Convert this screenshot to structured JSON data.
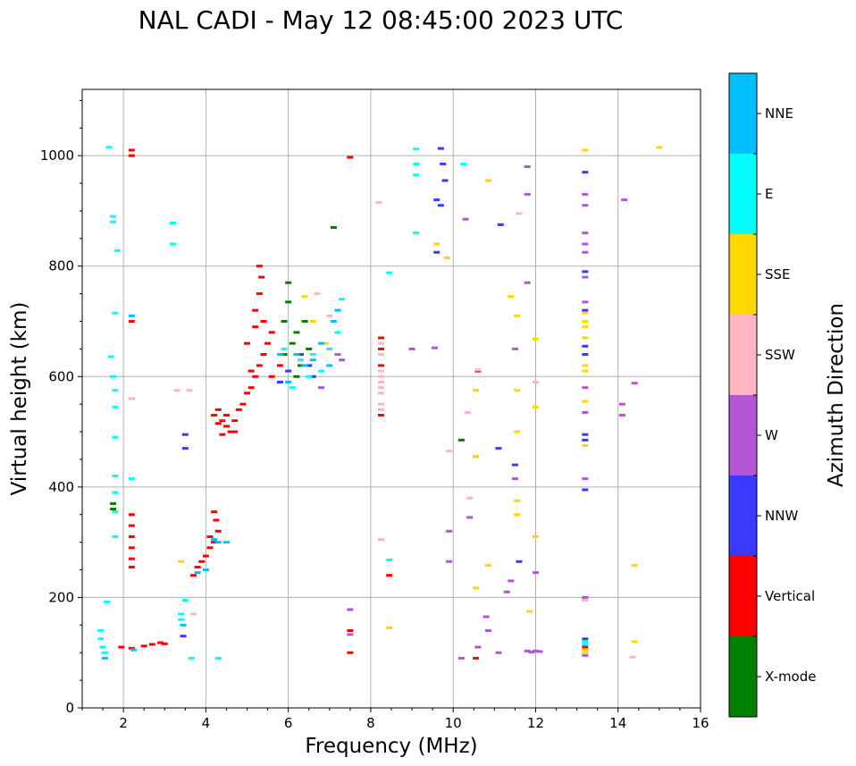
{
  "chart_data": {
    "type": "scatter",
    "title": "NAL CADI - May 12 08:45:00 2023 UTC",
    "xlabel": "Frequency (MHz)",
    "ylabel": "Virtual height (km)",
    "xlim": [
      1,
      16
    ],
    "ylim": [
      0,
      1120
    ],
    "xticks": [
      2,
      4,
      6,
      8,
      10,
      12,
      14,
      16
    ],
    "yticks": [
      0,
      200,
      400,
      600,
      800,
      1000
    ],
    "grid": true,
    "colorbar": {
      "label": "Azimuth Direction",
      "categories": [
        {
          "name": "X-mode",
          "color": "#008000"
        },
        {
          "name": "Vertical",
          "color": "#ff0000"
        },
        {
          "name": "NNW",
          "color": "#3a3aff"
        },
        {
          "name": "W",
          "color": "#b455d6"
        },
        {
          "name": "SSW",
          "color": "#ffb6c1"
        },
        {
          "name": "SSE",
          "color": "#ffd700"
        },
        {
          "name": "E",
          "color": "#00ffff"
        },
        {
          "name": "NNE",
          "color": "#00bfff"
        }
      ]
    },
    "series": [
      {
        "name": "Vertical",
        "points": [
          [
            2.2,
            1010
          ],
          [
            2.2,
            1000
          ],
          [
            2.2,
            350
          ],
          [
            2.2,
            330
          ],
          [
            2.2,
            310
          ],
          [
            2.2,
            290
          ],
          [
            2.2,
            270
          ],
          [
            2.2,
            255
          ],
          [
            2.2,
            700
          ],
          [
            2.2,
            560
          ],
          [
            1.95,
            110
          ],
          [
            2.2,
            108
          ],
          [
            2.5,
            112
          ],
          [
            2.7,
            115
          ],
          [
            2.9,
            118
          ],
          [
            3.0,
            116
          ],
          [
            3.7,
            240
          ],
          [
            3.8,
            255
          ],
          [
            3.9,
            265
          ],
          [
            4.0,
            275
          ],
          [
            4.1,
            290
          ],
          [
            4.2,
            300
          ],
          [
            4.3,
            320
          ],
          [
            4.25,
            340
          ],
          [
            4.2,
            355
          ],
          [
            4.1,
            310
          ],
          [
            4.2,
            530
          ],
          [
            4.3,
            540
          ],
          [
            4.4,
            520
          ],
          [
            4.5,
            510
          ],
          [
            4.6,
            500
          ],
          [
            4.7,
            520
          ],
          [
            4.8,
            540
          ],
          [
            4.9,
            550
          ],
          [
            5.0,
            570
          ],
          [
            5.1,
            580
          ],
          [
            5.2,
            600
          ],
          [
            5.3,
            620
          ],
          [
            5.4,
            640
          ],
          [
            5.5,
            660
          ],
          [
            5.6,
            680
          ],
          [
            5.0,
            660
          ],
          [
            5.2,
            720
          ],
          [
            5.3,
            750
          ],
          [
            5.35,
            780
          ],
          [
            5.3,
            800
          ],
          [
            5.2,
            690
          ],
          [
            5.6,
            600
          ],
          [
            5.8,
            620
          ],
          [
            4.4,
            495
          ],
          [
            4.5,
            530
          ],
          [
            4.3,
            515
          ],
          [
            4.7,
            500
          ],
          [
            5.1,
            610
          ],
          [
            5.4,
            700
          ],
          [
            8.25,
            670
          ],
          [
            8.25,
            650
          ],
          [
            8.25,
            620
          ],
          [
            8.25,
            530
          ],
          [
            8.45,
            240
          ],
          [
            7.5,
            997
          ],
          [
            7.5,
            100
          ],
          [
            7.5,
            140
          ],
          [
            10.55,
            90
          ],
          [
            13.2,
            110
          ],
          [
            10.6,
            610
          ]
        ]
      },
      {
        "name": "X-mode",
        "points": [
          [
            6.0,
            770
          ],
          [
            6.0,
            735
          ],
          [
            5.9,
            700
          ],
          [
            6.2,
            680
          ],
          [
            6.1,
            660
          ],
          [
            5.9,
            640
          ],
          [
            6.3,
            620
          ],
          [
            6.2,
            600
          ],
          [
            6.5,
            650
          ],
          [
            6.4,
            700
          ],
          [
            7.1,
            870
          ],
          [
            10.2,
            485
          ],
          [
            10.55,
            455
          ],
          [
            1.75,
            360
          ],
          [
            1.75,
            370
          ]
        ]
      },
      {
        "name": "NNW",
        "points": [
          [
            9.7,
            1013
          ],
          [
            9.75,
            985
          ],
          [
            9.8,
            955
          ],
          [
            9.6,
            920
          ],
          [
            9.7,
            910
          ],
          [
            9.6,
            825
          ],
          [
            13.2,
            970
          ],
          [
            13.2,
            790
          ],
          [
            13.2,
            720
          ],
          [
            13.2,
            655
          ],
          [
            13.2,
            640
          ],
          [
            13.2,
            495
          ],
          [
            13.2,
            485
          ],
          [
            13.2,
            395
          ],
          [
            13.2,
            125
          ],
          [
            11.5,
            440
          ],
          [
            11.6,
            265
          ],
          [
            11.1,
            470
          ],
          [
            11.15,
            875
          ],
          [
            3.5,
            495
          ],
          [
            3.5,
            470
          ],
          [
            3.45,
            130
          ],
          [
            6.0,
            610
          ],
          [
            6.3,
            640
          ],
          [
            6.5,
            620
          ],
          [
            6.6,
            600
          ],
          [
            5.8,
            590
          ]
        ]
      },
      {
        "name": "W",
        "points": [
          [
            11.8,
            980
          ],
          [
            11.8,
            930
          ],
          [
            11.8,
            770
          ],
          [
            11.5,
            650
          ],
          [
            11.5,
            415
          ],
          [
            11.4,
            230
          ],
          [
            11.3,
            210
          ],
          [
            11.1,
            100
          ],
          [
            10.8,
            165
          ],
          [
            10.85,
            140
          ],
          [
            10.6,
            110
          ],
          [
            10.2,
            90
          ],
          [
            12.0,
            245
          ],
          [
            11.8,
            103
          ],
          [
            11.9,
            101
          ],
          [
            12.0,
            103
          ],
          [
            12.1,
            102
          ],
          [
            13.2,
            930
          ],
          [
            13.2,
            910
          ],
          [
            13.2,
            860
          ],
          [
            13.2,
            840
          ],
          [
            13.2,
            825
          ],
          [
            13.2,
            780
          ],
          [
            13.2,
            735
          ],
          [
            13.2,
            580
          ],
          [
            13.2,
            535
          ],
          [
            13.2,
            415
          ],
          [
            13.2,
            200
          ],
          [
            13.2,
            195
          ],
          [
            13.2,
            95
          ],
          [
            14.15,
            920
          ],
          [
            14.4,
            588
          ],
          [
            14.1,
            550
          ],
          [
            14.1,
            530
          ],
          [
            9.55,
            652
          ],
          [
            9.0,
            650
          ],
          [
            10.4,
            345
          ],
          [
            9.9,
            320
          ],
          [
            9.9,
            265
          ],
          [
            10.3,
            885
          ],
          [
            7.5,
            178
          ],
          [
            7.5,
            133
          ],
          [
            6.8,
            580
          ],
          [
            7.2,
            640
          ],
          [
            7.3,
            630
          ]
        ]
      },
      {
        "name": "SSW",
        "points": [
          [
            8.25,
            660
          ],
          [
            8.25,
            640
          ],
          [
            8.25,
            610
          ],
          [
            8.25,
            600
          ],
          [
            8.25,
            590
          ],
          [
            8.25,
            580
          ],
          [
            8.25,
            570
          ],
          [
            8.25,
            550
          ],
          [
            8.25,
            540
          ],
          [
            8.2,
            915
          ],
          [
            8.25,
            305
          ],
          [
            10.6,
            612
          ],
          [
            10.35,
            535
          ],
          [
            10.4,
            380
          ],
          [
            9.9,
            465
          ],
          [
            11.6,
            895
          ],
          [
            12.0,
            590
          ],
          [
            14.35,
            92
          ],
          [
            13.2,
            195
          ],
          [
            2.2,
            560
          ],
          [
            3.6,
            575
          ],
          [
            3.7,
            170
          ],
          [
            3.3,
            575
          ],
          [
            6.7,
            750
          ],
          [
            7.0,
            710
          ]
        ]
      },
      {
        "name": "SSE",
        "points": [
          [
            13.2,
            1010
          ],
          [
            13.2,
            715
          ],
          [
            13.2,
            700
          ],
          [
            13.2,
            690
          ],
          [
            13.2,
            670
          ],
          [
            13.2,
            620
          ],
          [
            13.2,
            610
          ],
          [
            13.2,
            555
          ],
          [
            13.2,
            475
          ],
          [
            13.2,
            100
          ],
          [
            13.2,
            105
          ],
          [
            10.55,
            575
          ],
          [
            10.55,
            455
          ],
          [
            10.85,
            955
          ],
          [
            10.85,
            258
          ],
          [
            10.55,
            217
          ],
          [
            11.55,
            710
          ],
          [
            11.55,
            575
          ],
          [
            11.55,
            500
          ],
          [
            11.55,
            375
          ],
          [
            11.55,
            350
          ],
          [
            11.85,
            175
          ],
          [
            12.0,
            668
          ],
          [
            12.0,
            545
          ],
          [
            12.0,
            310
          ],
          [
            14.4,
            258
          ],
          [
            14.4,
            120
          ],
          [
            15.0,
            1015
          ],
          [
            9.85,
            815
          ],
          [
            9.6,
            840
          ],
          [
            8.45,
            145
          ],
          [
            11.4,
            745
          ],
          [
            6.4,
            745
          ],
          [
            6.6,
            700
          ],
          [
            6.9,
            660
          ],
          [
            3.4,
            265
          ]
        ]
      },
      {
        "name": "E",
        "points": [
          [
            9.1,
            1012
          ],
          [
            9.1,
            985
          ],
          [
            9.1,
            965
          ],
          [
            9.1,
            860
          ],
          [
            10.25,
            985
          ],
          [
            8.45,
            788
          ],
          [
            8.45,
            268
          ],
          [
            13.2,
            115
          ],
          [
            13.2,
            120
          ],
          [
            3.2,
            878
          ],
          [
            3.2,
            840
          ],
          [
            1.45,
            140
          ],
          [
            1.45,
            125
          ],
          [
            1.5,
            110
          ],
          [
            1.55,
            100
          ],
          [
            1.65,
            1015
          ],
          [
            1.75,
            890
          ],
          [
            1.75,
            880
          ],
          [
            1.85,
            828
          ],
          [
            1.8,
            715
          ],
          [
            1.7,
            636
          ],
          [
            1.75,
            600
          ],
          [
            1.8,
            575
          ],
          [
            1.8,
            545
          ],
          [
            1.8,
            490
          ],
          [
            1.8,
            420
          ],
          [
            1.8,
            390
          ],
          [
            1.8,
            310
          ],
          [
            1.8,
            355
          ],
          [
            1.6,
            192
          ],
          [
            2.2,
            415
          ],
          [
            3.4,
            160
          ],
          [
            3.4,
            170
          ],
          [
            3.5,
            195
          ],
          [
            3.65,
            90
          ],
          [
            4.3,
            90
          ],
          [
            6.3,
            630
          ],
          [
            6.5,
            600
          ],
          [
            6.6,
            640
          ],
          [
            6.8,
            610
          ],
          [
            7.0,
            650
          ],
          [
            7.2,
            680
          ],
          [
            7.3,
            740
          ],
          [
            5.9,
            650
          ],
          [
            6.1,
            580
          ]
        ]
      },
      {
        "name": "NNE",
        "points": [
          [
            6.2,
            640
          ],
          [
            6.4,
            620
          ],
          [
            6.6,
            630
          ],
          [
            6.8,
            660
          ],
          [
            7.0,
            620
          ],
          [
            7.1,
            700
          ],
          [
            7.2,
            720
          ],
          [
            6.0,
            590
          ],
          [
            5.8,
            640
          ],
          [
            4.2,
            305
          ],
          [
            4.3,
            300
          ],
          [
            4.5,
            300
          ],
          [
            3.8,
            245
          ],
          [
            4.0,
            250
          ],
          [
            1.55,
            90
          ],
          [
            2.2,
            710
          ],
          [
            2.25,
            105
          ],
          [
            3.45,
            150
          ]
        ]
      }
    ]
  }
}
